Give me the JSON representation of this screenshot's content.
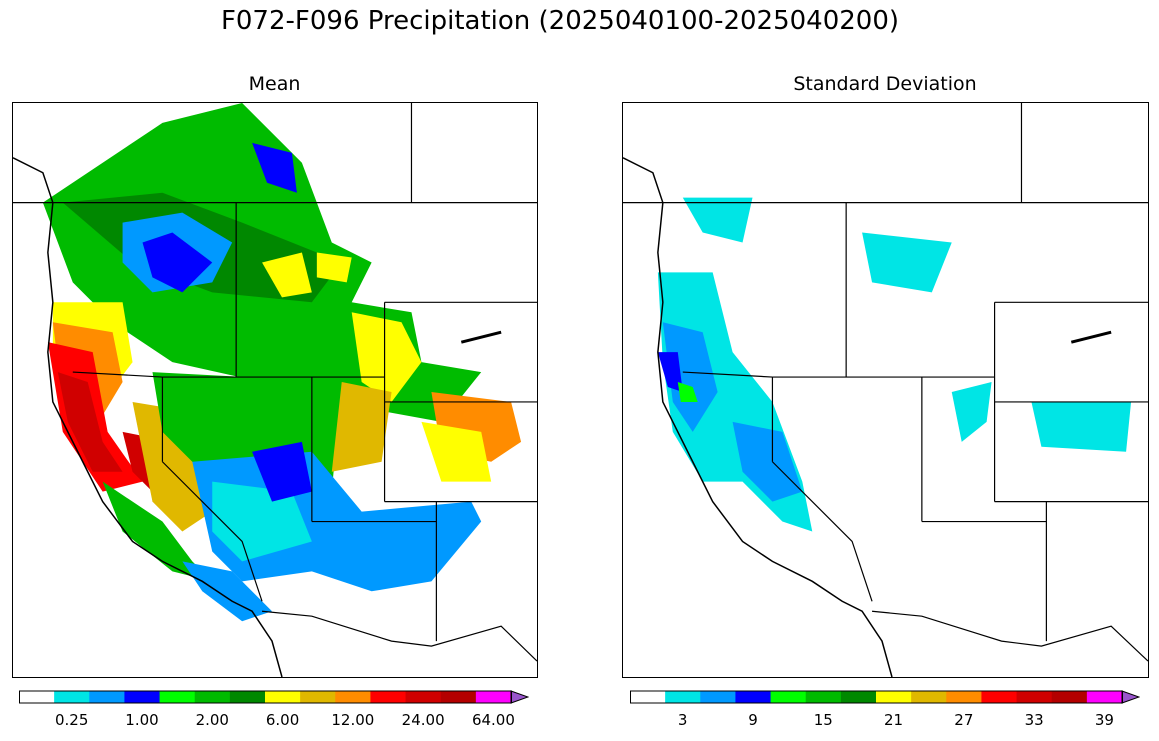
{
  "figure": {
    "suptitle": "F072-F096 Precipitation (2025040100-2025040200)"
  },
  "panels": [
    {
      "id": "mean",
      "title": "Mean",
      "colorbar": {
        "colors": [
          "#ffffff",
          "#00e5e5",
          "#0099ff",
          "#0000ff",
          "#00ff00",
          "#00bb00",
          "#008800",
          "#ffff00",
          "#e0b800",
          "#ff8c00",
          "#ff0000",
          "#d00000",
          "#b40000",
          "#ff00ff",
          "#9955cc"
        ],
        "tick_labels": [
          "0.25",
          "1.00",
          "2.00",
          "6.00",
          "12.00",
          "24.00",
          "64.00"
        ],
        "tick_label_bins": [
          1,
          3,
          5,
          7,
          9,
          11,
          13
        ]
      }
    },
    {
      "id": "std",
      "title": "Standard Deviation",
      "colorbar": {
        "colors": [
          "#ffffff",
          "#00e5e5",
          "#0099ff",
          "#0000ff",
          "#00ff00",
          "#00bb00",
          "#008800",
          "#ffff00",
          "#e0b800",
          "#ff8c00",
          "#ff0000",
          "#d00000",
          "#b40000",
          "#ff00ff",
          "#9955cc"
        ],
        "tick_labels": [
          "3",
          "9",
          "15",
          "21",
          "27",
          "33",
          "39"
        ],
        "tick_label_bins": [
          1,
          3,
          5,
          7,
          9,
          11,
          13
        ]
      }
    }
  ],
  "colors": {
    "boundary": "#000000",
    "background": "#ffffff"
  }
}
